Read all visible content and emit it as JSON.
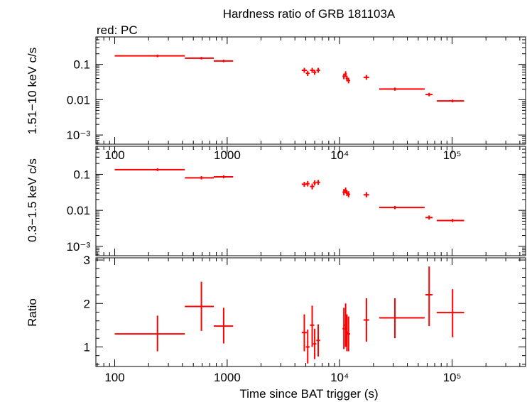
{
  "title": "Hardness ratio of GRB 181103A",
  "subtitle": "red: PC",
  "colors": {
    "data": "#ff0000",
    "axes": "#000000"
  },
  "chart_data": [
    {
      "type": "scatter",
      "panel": "top",
      "ylabel": "1.51−10 keV c/s",
      "xscale": "log",
      "yscale": "log",
      "xlim": [
        68,
        450000
      ],
      "ylim": [
        0.00055,
        0.6
      ],
      "x_ticks": [
        {
          "v": 100,
          "label": "100"
        },
        {
          "v": 1000,
          "label": "1000"
        },
        {
          "v": 10000,
          "label": "10⁴"
        },
        {
          "v": 100000,
          "label": "10⁵"
        }
      ],
      "y_ticks": [
        {
          "v": 0.1,
          "label": "0.1"
        },
        {
          "v": 0.01,
          "label": "0.01"
        },
        {
          "v": 0.001,
          "label": "10⁻³"
        }
      ],
      "points": [
        {
          "x": 240,
          "xlo": 100,
          "xhi": 420,
          "y": 0.175,
          "ylo": 0.16,
          "yhi": 0.19
        },
        {
          "x": 590,
          "xlo": 420,
          "xhi": 760,
          "y": 0.15,
          "ylo": 0.138,
          "yhi": 0.163
        },
        {
          "x": 930,
          "xlo": 760,
          "xhi": 1130,
          "y": 0.125,
          "ylo": 0.115,
          "yhi": 0.136
        },
        {
          "x": 4850,
          "xlo": 4600,
          "xhi": 5100,
          "y": 0.068,
          "ylo": 0.058,
          "yhi": 0.08
        },
        {
          "x": 5200,
          "xlo": 5000,
          "xhi": 5400,
          "y": 0.056,
          "ylo": 0.047,
          "yhi": 0.066
        },
        {
          "x": 5700,
          "xlo": 5450,
          "xhi": 5950,
          "y": 0.068,
          "ylo": 0.058,
          "yhi": 0.08
        },
        {
          "x": 6000,
          "xlo": 5800,
          "xhi": 6200,
          "y": 0.06,
          "ylo": 0.051,
          "yhi": 0.07
        },
        {
          "x": 6450,
          "xlo": 6200,
          "xhi": 6700,
          "y": 0.068,
          "ylo": 0.058,
          "yhi": 0.08
        },
        {
          "x": 10900,
          "xlo": 10600,
          "xhi": 11200,
          "y": 0.046,
          "ylo": 0.038,
          "yhi": 0.055
        },
        {
          "x": 11300,
          "xlo": 11000,
          "xhi": 11600,
          "y": 0.053,
          "ylo": 0.044,
          "yhi": 0.064
        },
        {
          "x": 11600,
          "xlo": 11300,
          "xhi": 11900,
          "y": 0.04,
          "ylo": 0.033,
          "yhi": 0.048
        },
        {
          "x": 12000,
          "xlo": 11600,
          "xhi": 12400,
          "y": 0.035,
          "ylo": 0.029,
          "yhi": 0.042
        },
        {
          "x": 17300,
          "xlo": 16300,
          "xhi": 18300,
          "y": 0.043,
          "ylo": 0.037,
          "yhi": 0.05
        },
        {
          "x": 31000,
          "xlo": 22500,
          "xhi": 57000,
          "y": 0.02,
          "ylo": 0.018,
          "yhi": 0.022
        },
        {
          "x": 62500,
          "xlo": 58000,
          "xhi": 67000,
          "y": 0.014,
          "ylo": 0.0125,
          "yhi": 0.0157
        },
        {
          "x": 101000,
          "xlo": 73000,
          "xhi": 128000,
          "y": 0.0092,
          "ylo": 0.0084,
          "yhi": 0.0101
        }
      ]
    },
    {
      "type": "scatter",
      "panel": "middle",
      "ylabel": "0.3−1.5 keV c/s",
      "xscale": "log",
      "yscale": "log",
      "xlim": [
        68,
        450000
      ],
      "ylim": [
        0.00055,
        0.6
      ],
      "x_ticks": [
        {
          "v": 100,
          "label": ""
        },
        {
          "v": 1000,
          "label": ""
        },
        {
          "v": 10000,
          "label": ""
        },
        {
          "v": 100000,
          "label": ""
        }
      ],
      "y_ticks": [
        {
          "v": 0.1,
          "label": "0.1"
        },
        {
          "v": 0.01,
          "label": "0.01"
        },
        {
          "v": 0.001,
          "label": "10⁻³"
        }
      ],
      "points": [
        {
          "x": 240,
          "xlo": 100,
          "xhi": 420,
          "y": 0.135,
          "ylo": 0.123,
          "yhi": 0.148
        },
        {
          "x": 590,
          "xlo": 420,
          "xhi": 760,
          "y": 0.08,
          "ylo": 0.072,
          "yhi": 0.089
        },
        {
          "x": 930,
          "xlo": 760,
          "xhi": 1130,
          "y": 0.085,
          "ylo": 0.077,
          "yhi": 0.094
        },
        {
          "x": 4850,
          "xlo": 4600,
          "xhi": 5100,
          "y": 0.053,
          "ylo": 0.045,
          "yhi": 0.062
        },
        {
          "x": 5200,
          "xlo": 5000,
          "xhi": 5400,
          "y": 0.055,
          "ylo": 0.046,
          "yhi": 0.065
        },
        {
          "x": 5700,
          "xlo": 5450,
          "xhi": 5950,
          "y": 0.046,
          "ylo": 0.038,
          "yhi": 0.055
        },
        {
          "x": 6000,
          "xlo": 5800,
          "xhi": 6200,
          "y": 0.058,
          "ylo": 0.049,
          "yhi": 0.068
        },
        {
          "x": 6450,
          "xlo": 6200,
          "xhi": 6700,
          "y": 0.06,
          "ylo": 0.051,
          "yhi": 0.07
        },
        {
          "x": 10900,
          "xlo": 10600,
          "xhi": 11200,
          "y": 0.032,
          "ylo": 0.026,
          "yhi": 0.039
        },
        {
          "x": 11300,
          "xlo": 11000,
          "xhi": 11600,
          "y": 0.036,
          "ylo": 0.03,
          "yhi": 0.043
        },
        {
          "x": 11600,
          "xlo": 11300,
          "xhi": 11900,
          "y": 0.03,
          "ylo": 0.025,
          "yhi": 0.036
        },
        {
          "x": 12000,
          "xlo": 11600,
          "xhi": 12400,
          "y": 0.028,
          "ylo": 0.023,
          "yhi": 0.034
        },
        {
          "x": 17300,
          "xlo": 16300,
          "xhi": 18300,
          "y": 0.027,
          "ylo": 0.023,
          "yhi": 0.032
        },
        {
          "x": 31000,
          "xlo": 22500,
          "xhi": 57000,
          "y": 0.012,
          "ylo": 0.0108,
          "yhi": 0.0133
        },
        {
          "x": 62500,
          "xlo": 58000,
          "xhi": 67000,
          "y": 0.0063,
          "ylo": 0.0055,
          "yhi": 0.0072
        },
        {
          "x": 101000,
          "xlo": 73000,
          "xhi": 128000,
          "y": 0.0052,
          "ylo": 0.0047,
          "yhi": 0.0058
        }
      ]
    },
    {
      "type": "scatter",
      "panel": "bottom",
      "xlabel": "Time since BAT trigger (s)",
      "ylabel": "Ratio",
      "xscale": "log",
      "yscale": "linear",
      "xlim": [
        68,
        450000
      ],
      "ylim": [
        0.55,
        3.05
      ],
      "x_ticks": [
        {
          "v": 100,
          "label": "100"
        },
        {
          "v": 1000,
          "label": "1000"
        },
        {
          "v": 10000,
          "label": "10⁴"
        },
        {
          "v": 100000,
          "label": "10⁵"
        }
      ],
      "y_ticks": [
        {
          "v": 1,
          "label": "1"
        },
        {
          "v": 2,
          "label": "2"
        },
        {
          "v": 3,
          "label": "3"
        }
      ],
      "points": [
        {
          "x": 240,
          "xlo": 100,
          "xhi": 420,
          "y": 1.3,
          "ylo": 0.9,
          "yhi": 1.72
        },
        {
          "x": 590,
          "xlo": 420,
          "xhi": 760,
          "y": 1.93,
          "ylo": 1.37,
          "yhi": 2.5
        },
        {
          "x": 930,
          "xlo": 760,
          "xhi": 1130,
          "y": 1.48,
          "ylo": 1.08,
          "yhi": 1.9
        },
        {
          "x": 4850,
          "xlo": 4600,
          "xhi": 5100,
          "y": 1.33,
          "ylo": 0.9,
          "yhi": 1.75
        },
        {
          "x": 5200,
          "xlo": 5000,
          "xhi": 5400,
          "y": 1.0,
          "ylo": 0.62,
          "yhi": 1.4
        },
        {
          "x": 5700,
          "xlo": 5450,
          "xhi": 5950,
          "y": 1.5,
          "ylo": 1.0,
          "yhi": 1.95
        },
        {
          "x": 6000,
          "xlo": 5800,
          "xhi": 6200,
          "y": 1.07,
          "ylo": 0.72,
          "yhi": 1.42
        },
        {
          "x": 6450,
          "xlo": 6200,
          "xhi": 6700,
          "y": 1.15,
          "ylo": 0.78,
          "yhi": 1.52
        },
        {
          "x": 10900,
          "xlo": 10600,
          "xhi": 11200,
          "y": 1.42,
          "ylo": 0.95,
          "yhi": 1.9
        },
        {
          "x": 11300,
          "xlo": 11000,
          "xhi": 11600,
          "y": 1.5,
          "ylo": 1.0,
          "yhi": 2.0
        },
        {
          "x": 11600,
          "xlo": 11300,
          "xhi": 11900,
          "y": 1.33,
          "ylo": 0.9,
          "yhi": 1.75
        },
        {
          "x": 12000,
          "xlo": 11600,
          "xhi": 12400,
          "y": 1.3,
          "ylo": 0.9,
          "yhi": 1.7
        },
        {
          "x": 17300,
          "xlo": 16300,
          "xhi": 18300,
          "y": 1.62,
          "ylo": 1.12,
          "yhi": 2.12
        },
        {
          "x": 31000,
          "xlo": 22500,
          "xhi": 57000,
          "y": 1.67,
          "ylo": 1.2,
          "yhi": 2.12
        },
        {
          "x": 62500,
          "xlo": 58000,
          "xhi": 67000,
          "y": 2.2,
          "ylo": 1.48,
          "yhi": 2.85
        },
        {
          "x": 101000,
          "xlo": 73000,
          "xhi": 128000,
          "y": 1.79,
          "ylo": 1.22,
          "yhi": 2.33
        }
      ]
    }
  ]
}
